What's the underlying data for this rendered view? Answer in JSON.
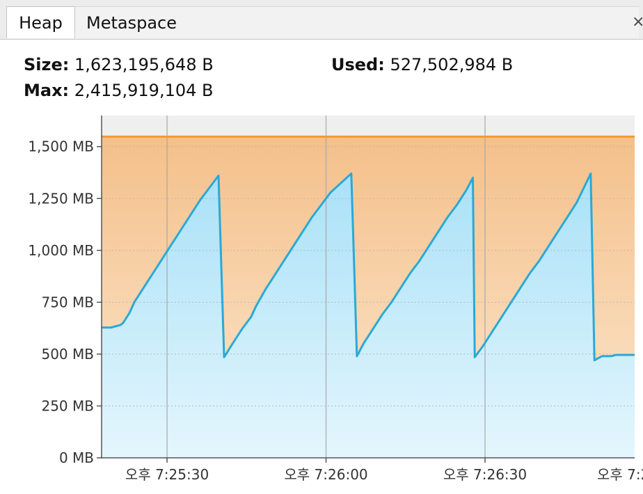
{
  "tabs": [
    {
      "label": "Heap",
      "active": true
    },
    {
      "label": "Metaspace",
      "active": false
    }
  ],
  "close_glyph": "×",
  "stats": {
    "size_label": "Size:",
    "size_value": "1,623,195,648 B",
    "used_label": "Used:",
    "used_value": "527,502,984 B",
    "max_label": "Max:",
    "max_value": "2,415,919,104 B"
  },
  "colors": {
    "used_line": "#2aa9d6",
    "size_line": "#f29a2e",
    "used_fill_top": "#a9e1f7",
    "used_fill_bottom": "#e4f6fd",
    "size_fill_top": "#f4c08a",
    "size_fill_bottom": "#fce7cf"
  },
  "chart_data": {
    "type": "area",
    "y_unit": "MB",
    "ylim": [
      0,
      1650
    ],
    "y_ticks": [
      {
        "value": 0,
        "label": "0 MB"
      },
      {
        "value": 250,
        "label": "250 MB"
      },
      {
        "value": 500,
        "label": "500 MB"
      },
      {
        "value": 750,
        "label": "750 MB"
      },
      {
        "value": 1000,
        "label": "1,000 MB"
      },
      {
        "value": 1250,
        "label": "1,250 MB"
      },
      {
        "value": 1500,
        "label": "1,500 MB"
      }
    ],
    "xlim": [
      0,
      57
    ],
    "x_ticks": [
      {
        "value": 7,
        "label": "오후 7:25:30"
      },
      {
        "value": 24,
        "label": "오후 7:26:00"
      },
      {
        "value": 41,
        "label": "오후 7:26:30"
      },
      {
        "value": 58,
        "label": "오후 7:2"
      }
    ],
    "grid": true,
    "series": [
      {
        "key": "size",
        "points": [
          [
            0,
            1548
          ],
          [
            57,
            1548
          ]
        ]
      },
      {
        "key": "used",
        "points": [
          [
            0,
            628
          ],
          [
            1,
            628
          ],
          [
            2,
            640
          ],
          [
            2.3,
            650
          ],
          [
            3,
            700
          ],
          [
            3.5,
            750
          ],
          [
            4.5,
            820
          ],
          [
            5.5,
            890
          ],
          [
            6.5,
            960
          ],
          [
            7.5,
            1030
          ],
          [
            8.5,
            1100
          ],
          [
            9.5,
            1170
          ],
          [
            10.5,
            1240
          ],
          [
            11.5,
            1300
          ],
          [
            12.5,
            1360
          ],
          [
            13.1,
            485
          ],
          [
            14,
            550
          ],
          [
            15,
            620
          ],
          [
            16,
            680
          ],
          [
            16.5,
            730
          ],
          [
            17.5,
            810
          ],
          [
            18.5,
            880
          ],
          [
            19.5,
            950
          ],
          [
            20.5,
            1020
          ],
          [
            21.5,
            1090
          ],
          [
            22.5,
            1160
          ],
          [
            23.5,
            1220
          ],
          [
            24.5,
            1280
          ],
          [
            26.7,
            1370
          ],
          [
            27.3,
            490
          ],
          [
            28,
            550
          ],
          [
            29,
            620
          ],
          [
            30,
            690
          ],
          [
            31,
            750
          ],
          [
            32,
            820
          ],
          [
            33,
            890
          ],
          [
            34,
            950
          ],
          [
            35,
            1020
          ],
          [
            36,
            1090
          ],
          [
            37,
            1160
          ],
          [
            38,
            1220
          ],
          [
            39,
            1290
          ],
          [
            39.7,
            1350
          ],
          [
            39.9,
            485
          ],
          [
            40.8,
            540
          ],
          [
            41.8,
            610
          ],
          [
            42.8,
            680
          ],
          [
            43.8,
            750
          ],
          [
            44.8,
            820
          ],
          [
            45.8,
            890
          ],
          [
            46.8,
            950
          ],
          [
            47.8,
            1020
          ],
          [
            48.8,
            1090
          ],
          [
            49.8,
            1160
          ],
          [
            50.8,
            1230
          ],
          [
            52.3,
            1370
          ],
          [
            52.7,
            470
          ],
          [
            53.5,
            490
          ],
          [
            54.5,
            490
          ],
          [
            55,
            496
          ],
          [
            57,
            496
          ]
        ]
      }
    ]
  }
}
